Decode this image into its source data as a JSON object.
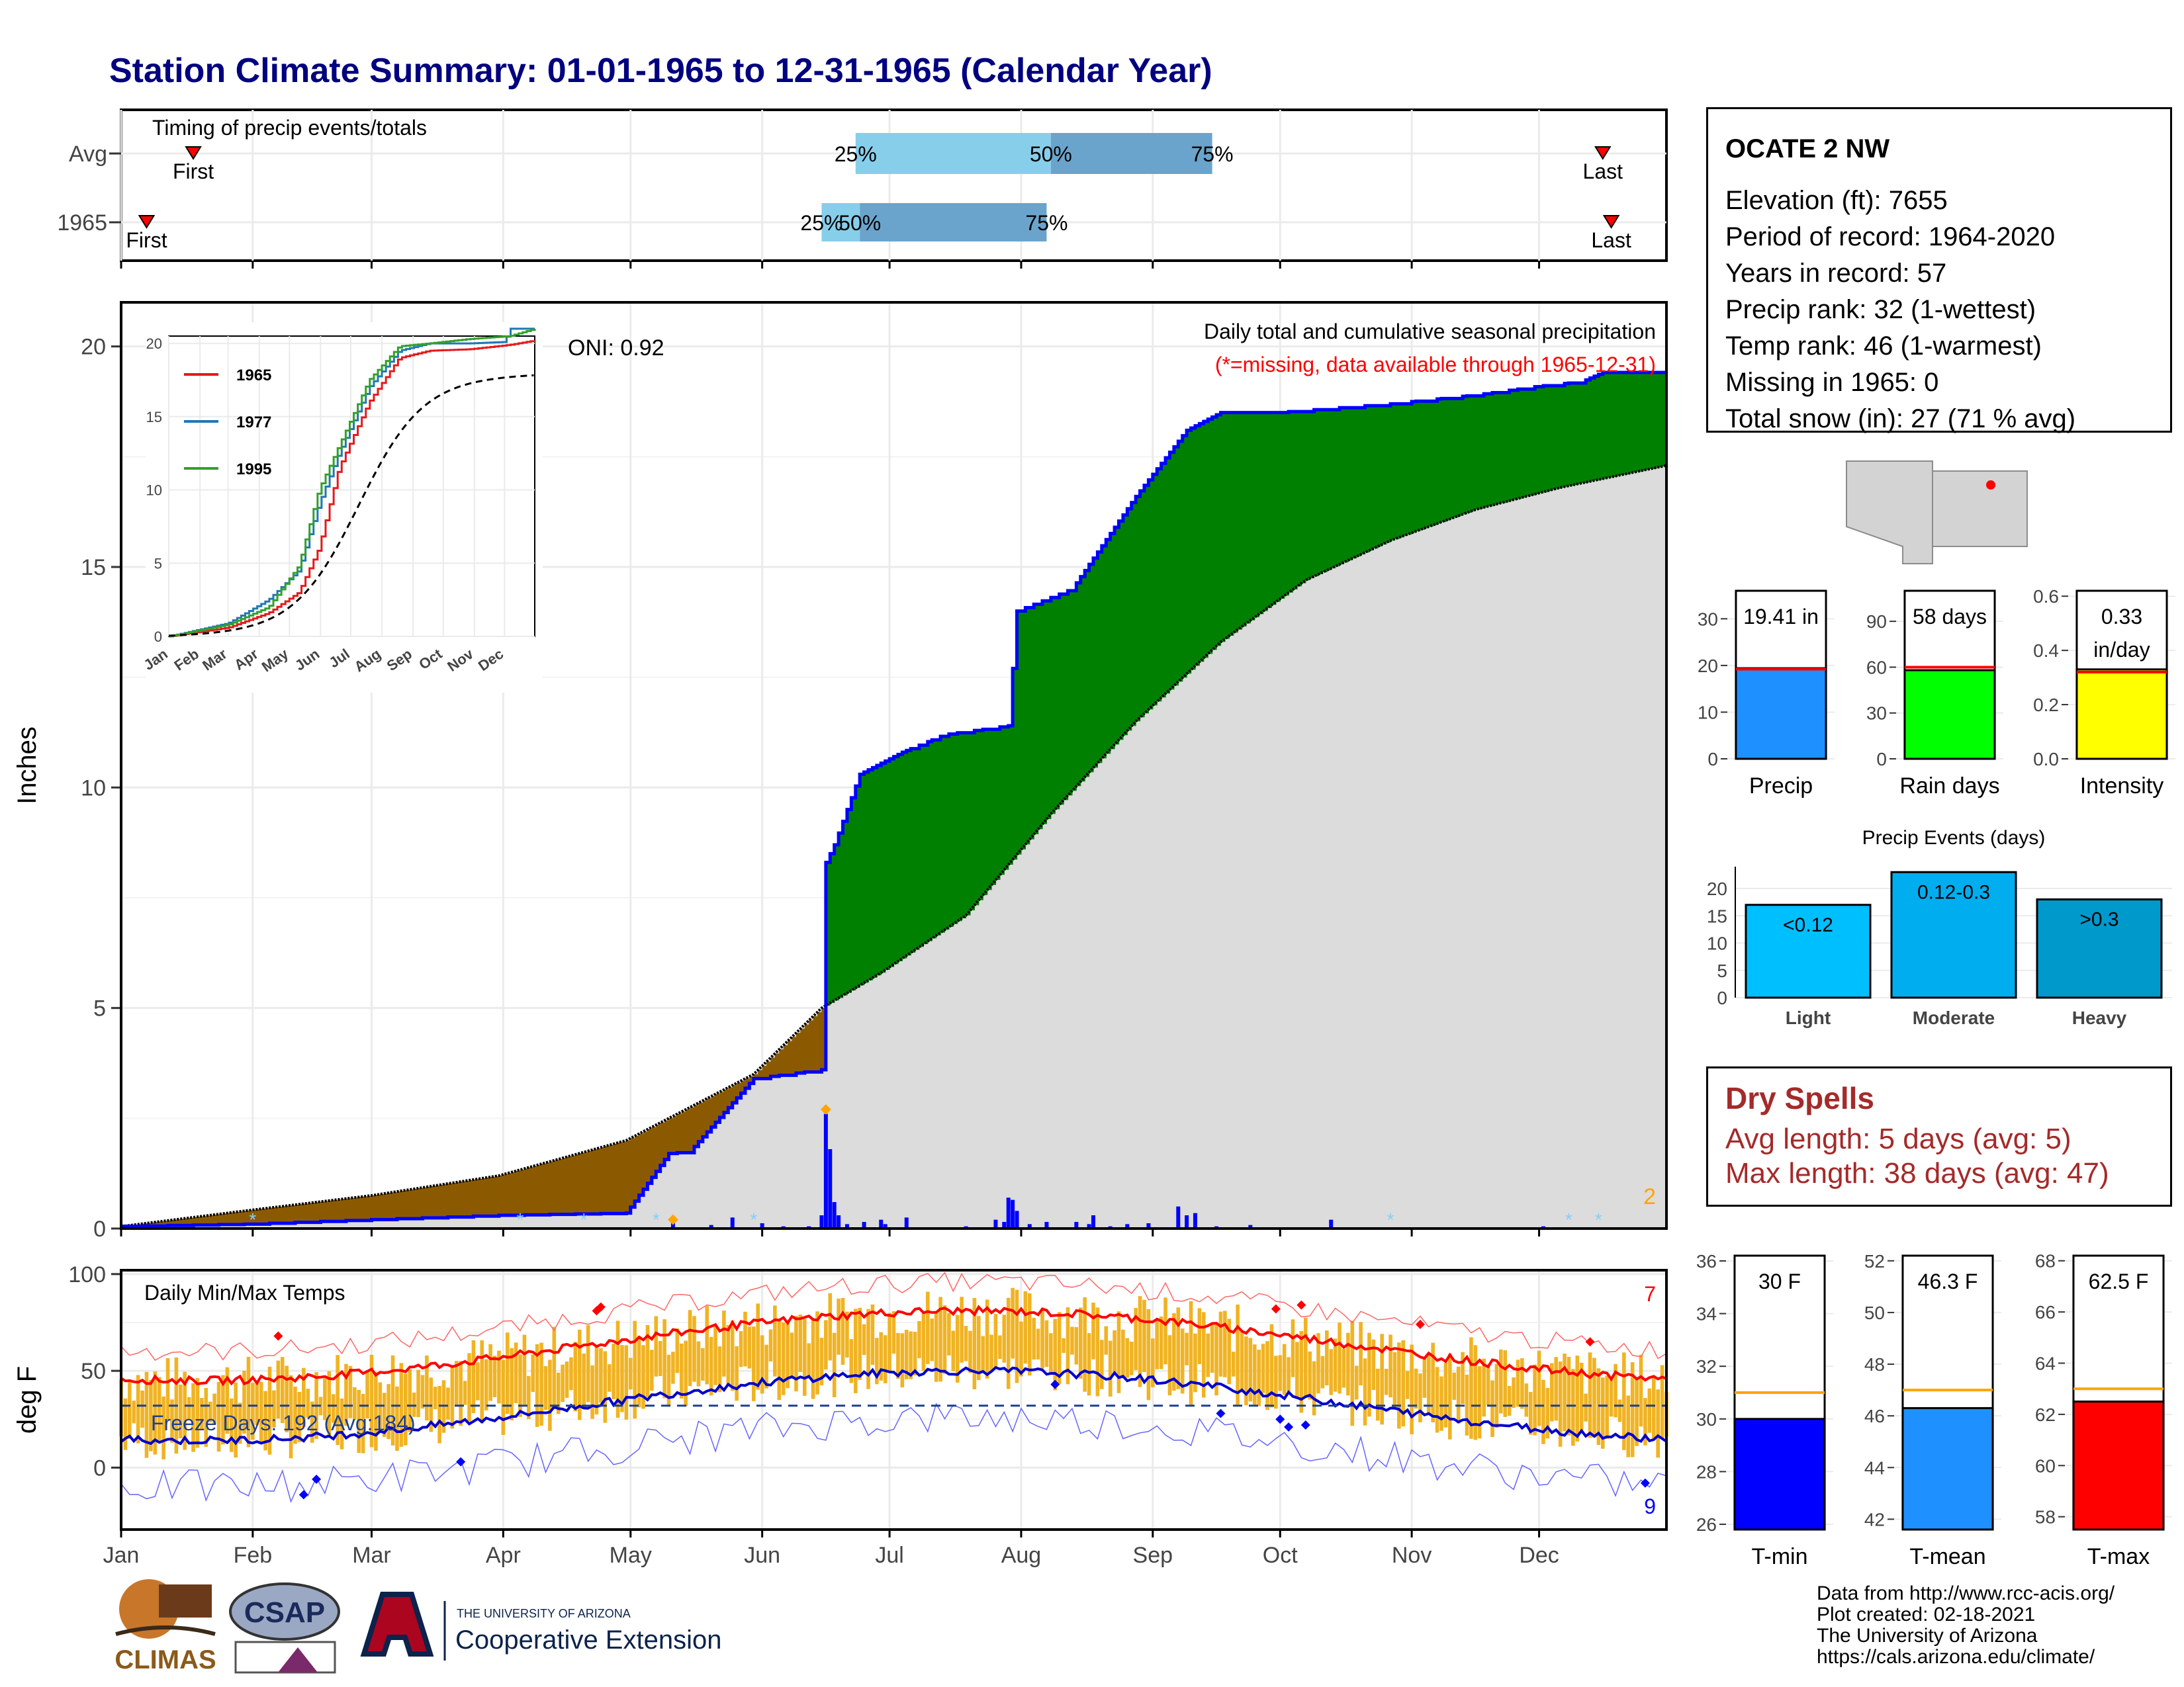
{
  "title": "Station Climate Summary: 01-01-1965 to 12-31-1965 (Calendar Year)",
  "months": [
    "Jan",
    "Feb",
    "Mar",
    "Apr",
    "May",
    "Jun",
    "Jul",
    "Aug",
    "Sep",
    "Oct",
    "Nov",
    "Dec"
  ],
  "timing": {
    "title": "Timing of precip events/totals",
    "rows": [
      {
        "label": "Avg",
        "first_label": "First",
        "last_label": "Last",
        "first_day": 18,
        "last_day": 350,
        "p25_day": 174,
        "p50_day": 220,
        "p75_day": 258,
        "p25_label": "25%",
        "p50_label": "50%",
        "p75_label": "75%"
      },
      {
        "label": "1965",
        "first_label": "First",
        "last_label": "Last",
        "first_day": 7,
        "last_day": 352,
        "p25_day": 166,
        "p50_day": 175,
        "p75_day": 219,
        "p25_label": "25%",
        "p50_label": "50%",
        "p75_label": "75%"
      }
    ]
  },
  "precip_panel": {
    "header": "Daily total and cumulative seasonal precipitation",
    "missing_note": "(*=missing, data available through 1965-12-31)",
    "oni": "ONI: 0.92",
    "ylabel": "Inches",
    "yticks": [
      0,
      5,
      10,
      15,
      20
    ],
    "corner_count": "2"
  },
  "temp_panel": {
    "title": "Daily Min/Max Temps",
    "ylabel": "deg F",
    "yticks": [
      0,
      50,
      100
    ],
    "freeze_text": "Freeze Days: 192 (Avg:184)",
    "max_count": "7",
    "min_count": "9"
  },
  "station": {
    "name": "OCATE 2 NW",
    "lines": [
      "Elevation (ft): 7655",
      "Period of record: 1964-2020",
      "Years in record: 57",
      "Precip rank: 32 (1-wettest)",
      "Temp rank: 46 (1-warmest)",
      "Missing in 1965: 0",
      "Total snow (in): 27 (71 % avg)"
    ]
  },
  "precip_bars": [
    {
      "label": "Precip",
      "value_text": "19.41 in",
      "value": 19.41,
      "avg": 19.2,
      "ymax": 36,
      "ticks": [
        0,
        10,
        20,
        30
      ],
      "color": "#1e90ff"
    },
    {
      "label": "Rain days",
      "value_text": "58 days",
      "value": 58,
      "avg": 60,
      "ymax": 110,
      "ticks": [
        0,
        30,
        60,
        90
      ],
      "color": "#00ff00"
    },
    {
      "label": "Intensity",
      "value_text": "0.33",
      "value_text2": "in/day",
      "value": 0.33,
      "avg": 0.32,
      "ymax": 0.62,
      "ticks": [
        0.0,
        0.2,
        0.4,
        0.6
      ],
      "color": "#ffff00"
    }
  ],
  "events": {
    "title": "Precip Events (days)",
    "bars": [
      {
        "category": "Light",
        "label": "<0.12",
        "value": 17,
        "color": "#00bfff"
      },
      {
        "category": "Moderate",
        "label": "0.12-0.3",
        "value": 23,
        "color": "#00aeef"
      },
      {
        "category": "Heavy",
        "label": ">0.3",
        "value": 18,
        "color": "#0099cc"
      }
    ],
    "ticks": [
      0,
      5,
      10,
      15,
      20
    ]
  },
  "dry_spells": {
    "title": "Dry Spells",
    "avg_line": "Avg length: 5 days (avg: 5)",
    "max_line": "Max length: 38 days (avg: 47)"
  },
  "temp_bars": [
    {
      "label": "T-min",
      "value_text": "30 F",
      "value": 30.0,
      "avg": 31.0,
      "ymin": 25.8,
      "ymax": 36.2,
      "ticks": [
        26,
        28,
        30,
        32,
        34,
        36
      ],
      "color": "#0000ff"
    },
    {
      "label": "T-mean",
      "value_text": "46.3 F",
      "value": 46.3,
      "avg": 47.0,
      "ymin": 41.6,
      "ymax": 52.2,
      "ticks": [
        42,
        44,
        46,
        48,
        50,
        52
      ],
      "color": "#1e90ff"
    },
    {
      "label": "T-max",
      "value_text": "62.5 F",
      "value": 62.5,
      "avg": 63.0,
      "ymin": 57.5,
      "ymax": 68.2,
      "ticks": [
        58,
        60,
        62,
        64,
        66,
        68
      ],
      "color": "#ff0000"
    }
  ],
  "inset": {
    "yticks": [
      0,
      5,
      10,
      15,
      20
    ],
    "months": [
      "Jan",
      "Feb",
      "Mar",
      "Apr",
      "May",
      "Jun",
      "Jul",
      "Aug",
      "Sep",
      "Oct",
      "Nov",
      "Dec"
    ],
    "legend": [
      {
        "name": "1965",
        "color": "#e31a1c"
      },
      {
        "name": "1977",
        "color": "#1f78b4"
      },
      {
        "name": "1995",
        "color": "#33a02c"
      }
    ]
  },
  "chart_data": {
    "type": "area",
    "title": "Daily total and cumulative seasonal precipitation",
    "ylabel": "Inches",
    "ylim": [
      0,
      21
    ],
    "x_unit": "day of year 1965",
    "series": [
      {
        "name": "1965",
        "x": [
          1,
          30,
          59,
          90,
          120,
          130,
          135,
          150,
          166,
          167,
          169,
          175,
          185,
          195,
          210,
          212,
          225,
          240,
          252,
          260,
          273,
          300,
          320,
          335,
          345,
          350,
          365
        ],
        "values": [
          0.05,
          0.1,
          0.2,
          0.3,
          0.35,
          1.7,
          1.75,
          3.4,
          3.6,
          8.3,
          8.7,
          10.3,
          10.8,
          11.2,
          11.4,
          14,
          14.5,
          16.6,
          18.1,
          18.5,
          18.5,
          18.7,
          18.9,
          19.1,
          19.2,
          19.41,
          19.41
        ]
      },
      {
        "x": [
          1,
          30,
          60,
          90,
          120,
          150,
          166,
          180,
          200,
          220,
          240,
          260,
          280,
          300,
          320,
          340,
          365
        ],
        "values": [
          0.05,
          0.4,
          0.75,
          1.2,
          2,
          3.5,
          5,
          5.8,
          7.1,
          9.4,
          11.5,
          13.3,
          14.7,
          15.6,
          16.3,
          16.8,
          17.3
        ]
      }
    ],
    "daily_precip": [
      [
        5,
        0.03
      ],
      [
        98,
        0.02
      ],
      [
        124,
        0.02
      ],
      [
        131,
        0.15
      ],
      [
        140,
        0.08
      ],
      [
        145,
        0.25
      ],
      [
        152,
        0.12
      ],
      [
        157,
        0.05
      ],
      [
        163,
        0.05
      ],
      [
        166,
        0.3
      ],
      [
        167,
        2.6
      ],
      [
        168,
        1.8
      ],
      [
        169,
        0.6
      ],
      [
        170,
        0.3
      ],
      [
        172,
        0.1
      ],
      [
        176,
        0.15
      ],
      [
        180,
        0.2
      ],
      [
        181,
        0.1
      ],
      [
        186,
        0.25
      ],
      [
        200,
        0.05
      ],
      [
        207,
        0.2
      ],
      [
        209,
        0.15
      ],
      [
        210,
        0.7
      ],
      [
        211,
        0.65
      ],
      [
        212,
        0.4
      ],
      [
        215,
        0.1
      ],
      [
        219,
        0.15
      ],
      [
        226,
        0.15
      ],
      [
        229,
        0.1
      ],
      [
        230,
        0.3
      ],
      [
        234,
        0.05
      ],
      [
        238,
        0.1
      ],
      [
        243,
        0.12
      ],
      [
        250,
        0.5
      ],
      [
        252,
        0.3
      ],
      [
        254,
        0.35
      ],
      [
        259,
        0.05
      ],
      [
        267,
        0.08
      ],
      [
        286,
        0.2
      ],
      [
        336,
        0.05
      ]
    ],
    "temps": {
      "tmax_mean_range": [
        45,
        81
      ],
      "tmin_mean_range": [
        14,
        50
      ],
      "ylim": [
        -32,
        102
      ]
    }
  }
}
